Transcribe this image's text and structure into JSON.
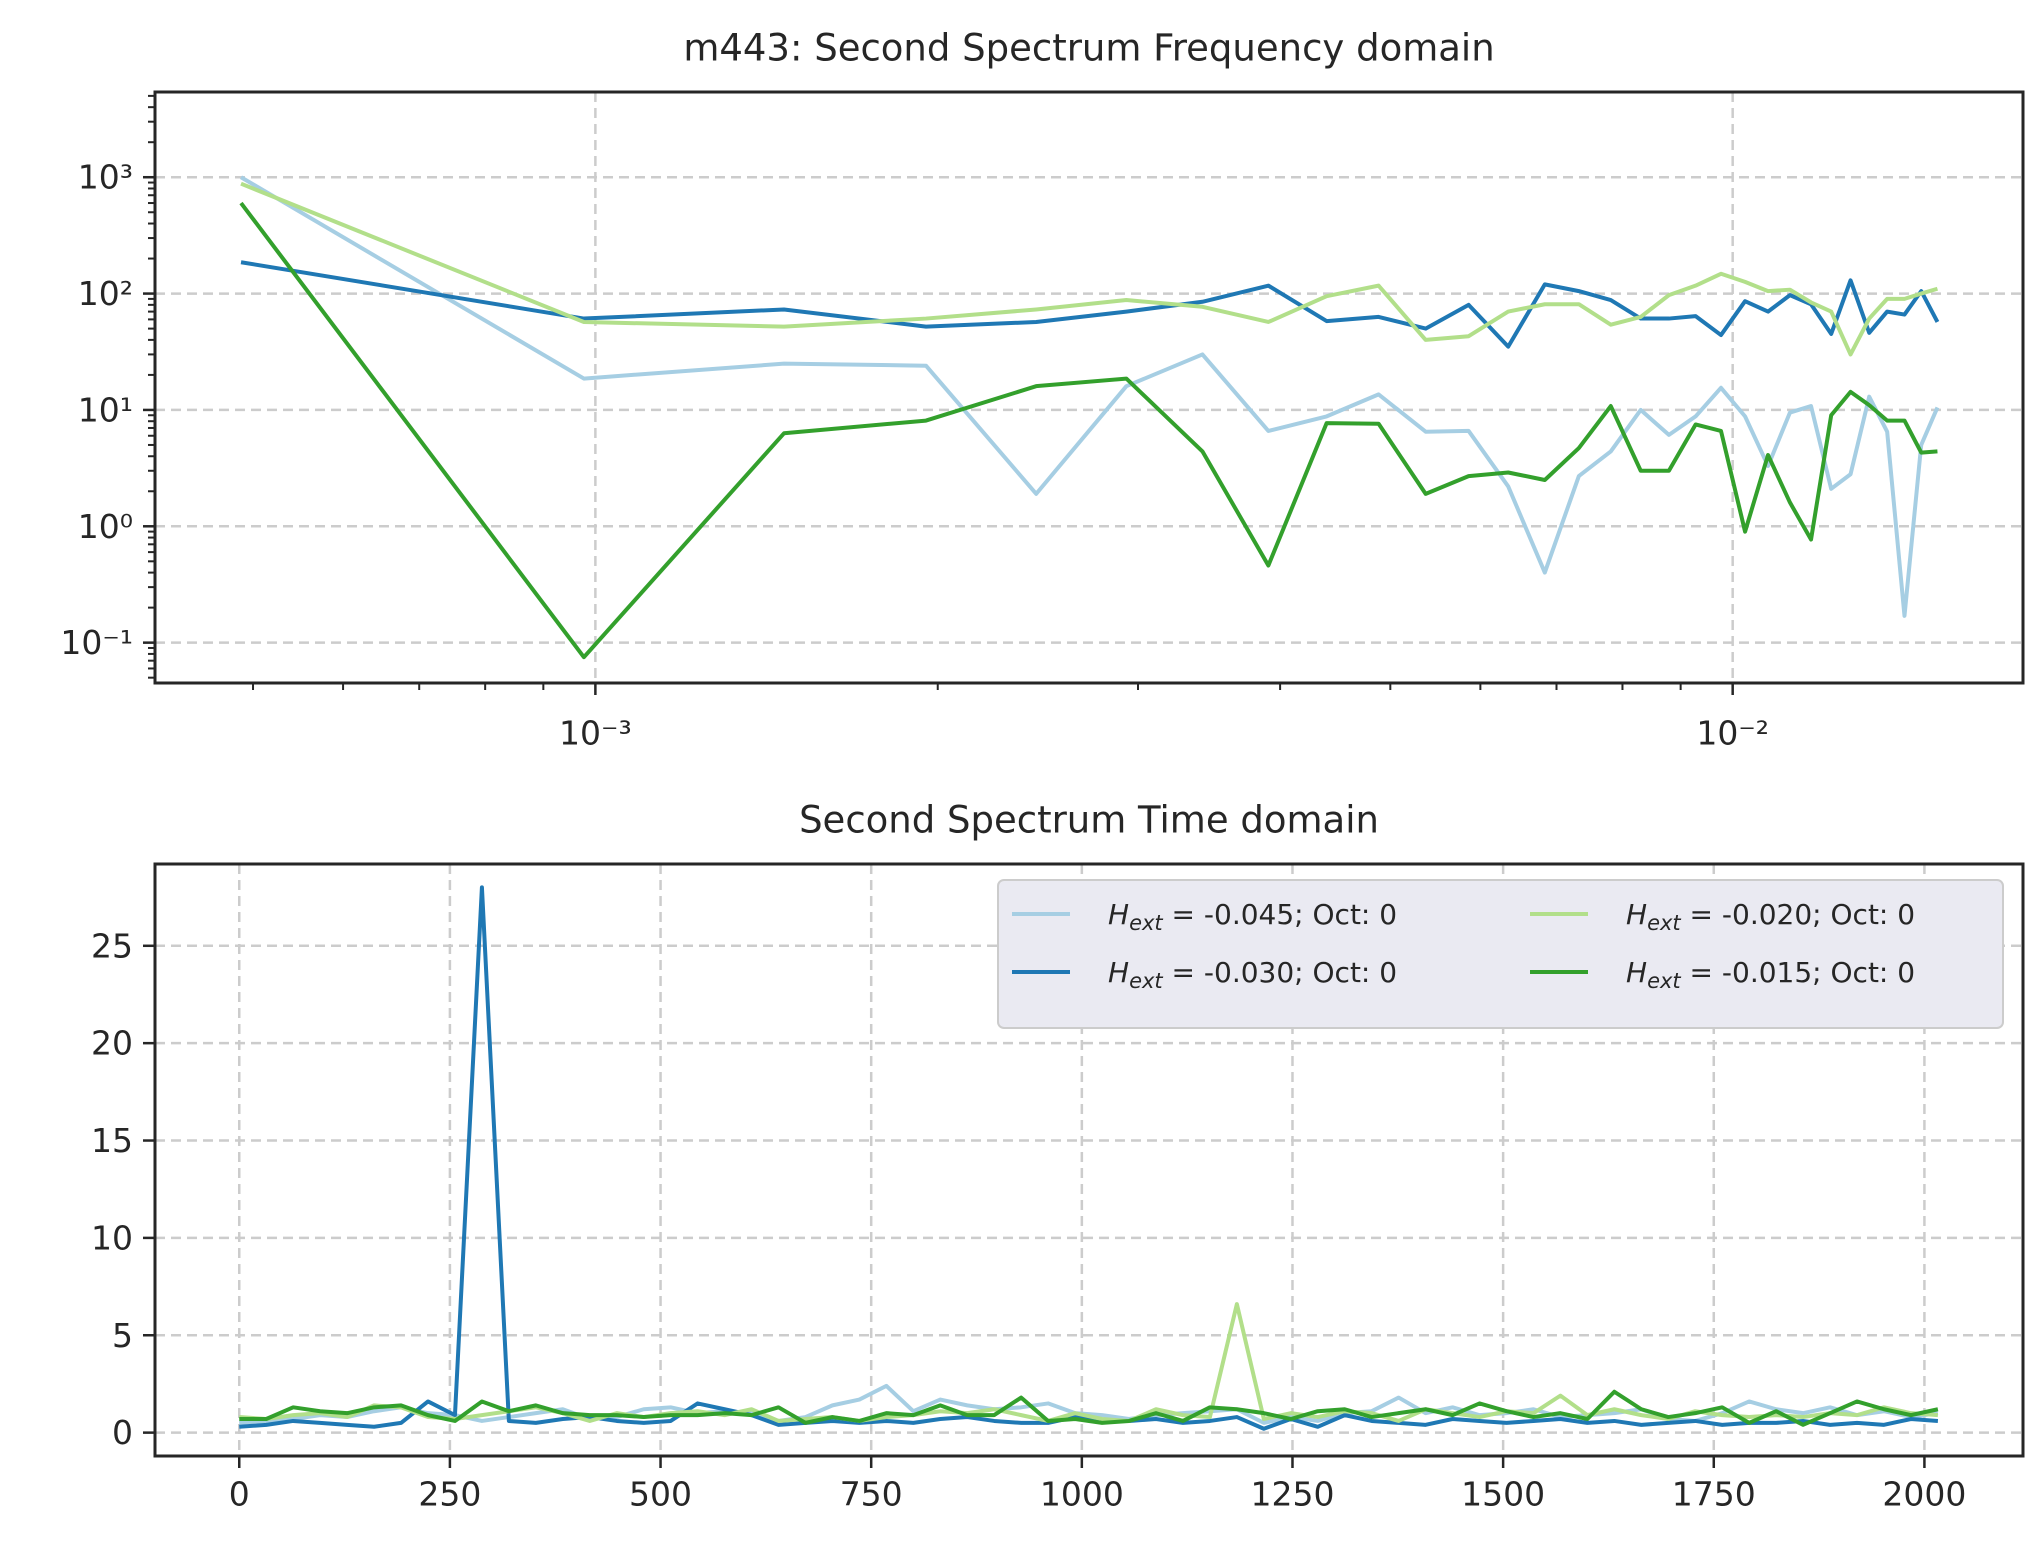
{
  "chart_data": [
    {
      "type": "line",
      "title": "m443: Second Spectrum Frequency domain",
      "x": [
        0.000488,
        0.000977,
        0.001465,
        0.001953,
        0.002441,
        0.00293,
        0.003418,
        0.003906,
        0.004395,
        0.004883,
        0.005371,
        0.005859,
        0.006348,
        0.006836,
        0.007324,
        0.007813,
        0.008301,
        0.008789,
        0.009277,
        0.009766,
        0.010254,
        0.010742,
        0.01123,
        0.011719,
        0.012207,
        0.012695,
        0.013184,
        0.013672,
        0.01416,
        0.014648,
        0.015137
      ],
      "series": [
        {
          "color": "#a6cee3",
          "values": [
            1000,
            18.6,
            25,
            24,
            1.9,
            16,
            30,
            6.6,
            8.8,
            13.6,
            6.5,
            6.6,
            2.2,
            0.4,
            2.7,
            4.4,
            10,
            6.1,
            8.8,
            15.5,
            8.8,
            3.3,
            9.5,
            10.8,
            2.1,
            2.8,
            13,
            6.5,
            0.17,
            5,
            10.5
          ]
        },
        {
          "color": "#1f78b4",
          "values": [
            186,
            61,
            73,
            52,
            57,
            70,
            85,
            117,
            58,
            63,
            50,
            80,
            35,
            120,
            105,
            88,
            61,
            61,
            64,
            44,
            86,
            70,
            97,
            81,
            45,
            130,
            46,
            70,
            66,
            105,
            57
          ]
        },
        {
          "color": "#b2df8a",
          "values": [
            880,
            57,
            52,
            61,
            73,
            88,
            77,
            57,
            95,
            117,
            40,
            43,
            70,
            81,
            81,
            54,
            63,
            97,
            117,
            148,
            126,
            105,
            108,
            84,
            70,
            30,
            61,
            90,
            90,
            100,
            110
          ]
        },
        {
          "color": "#33a02c",
          "values": [
            600,
            0.075,
            6.3,
            8.1,
            16,
            18.6,
            4.4,
            0.46,
            7.7,
            7.6,
            1.9,
            2.7,
            2.9,
            2.5,
            4.7,
            10.8,
            3,
            3,
            7.5,
            6.6,
            0.9,
            4.1,
            1.6,
            0.77,
            9,
            14.3,
            11,
            8.1,
            8.1,
            4.3,
            4.4
          ]
        }
      ],
      "xscale": "log",
      "yscale": "log",
      "xlim": [
        0.00041,
        0.018
      ],
      "ylim": [
        0.045,
        5400
      ],
      "xticks": [
        {
          "value": 0.001,
          "label": "10⁻³"
        },
        {
          "value": 0.01,
          "label": "10⁻²"
        }
      ],
      "yticks": [
        {
          "value": 0.1,
          "label": "10⁻¹"
        },
        {
          "value": 1,
          "label": "10⁰"
        },
        {
          "value": 10,
          "label": "10¹"
        },
        {
          "value": 100,
          "label": "10²"
        },
        {
          "value": 1000,
          "label": "10³"
        }
      ],
      "xminorticks": [
        0.0005,
        0.0006,
        0.0007,
        0.0008,
        0.0009,
        0.002,
        0.003,
        0.004,
        0.005,
        0.006,
        0.007,
        0.008,
        0.009
      ],
      "yminorticks": [
        0.05,
        0.06,
        0.07,
        0.08,
        0.09,
        0.2,
        0.3,
        0.4,
        0.5,
        0.6,
        0.7,
        0.8,
        0.9,
        2,
        3,
        4,
        5,
        6,
        7,
        8,
        9,
        20,
        30,
        40,
        50,
        60,
        70,
        80,
        90,
        200,
        300,
        400,
        500,
        600,
        700,
        800,
        900,
        2000,
        3000,
        4000,
        5000
      ],
      "grid": true
    },
    {
      "type": "line",
      "title": "Second Spectrum Time domain",
      "x": [
        0,
        32,
        64,
        96,
        128,
        160,
        192,
        224,
        256,
        288,
        320,
        352,
        384,
        416,
        448,
        480,
        512,
        544,
        576,
        608,
        640,
        672,
        704,
        736,
        768,
        800,
        832,
        864,
        896,
        928,
        960,
        992,
        1024,
        1056,
        1088,
        1120,
        1152,
        1184,
        1216,
        1248,
        1280,
        1312,
        1344,
        1376,
        1408,
        1440,
        1472,
        1504,
        1536,
        1568,
        1600,
        1632,
        1664,
        1696,
        1728,
        1760,
        1792,
        1824,
        1856,
        1888,
        1920,
        1952,
        1984,
        2016
      ],
      "series": [
        {
          "name": "Hext = -0.045; Oct: 0",
          "color": "#a6cee3",
          "values": [
            0.5,
            0.6,
            0.7,
            0.9,
            0.8,
            1.1,
            1.3,
            1.0,
            0.9,
            0.6,
            0.8,
            1.0,
            1.2,
            0.7,
            0.8,
            1.2,
            1.3,
            1.0,
            1.1,
            1.0,
            0.6,
            0.8,
            1.4,
            1.7,
            2.4,
            1.1,
            1.7,
            1.4,
            1.2,
            1.3,
            1.5,
            1.0,
            0.9,
            0.7,
            0.9,
            1.0,
            1.1,
            1.2,
            0.5,
            0.8,
            0.6,
            1.0,
            1.1,
            1.8,
            1.0,
            1.3,
            0.9,
            1.0,
            1.2,
            0.8,
            0.9,
            1.0,
            1.2,
            0.7,
            0.6,
            1.0,
            1.6,
            1.2,
            1.0,
            1.3,
            0.9,
            1.1,
            0.8,
            1.0
          ]
        },
        {
          "name": "Hext = -0.030; Oct: 0",
          "color": "#1f78b4",
          "values": [
            0.3,
            0.4,
            0.6,
            0.5,
            0.4,
            0.3,
            0.5,
            1.6,
            0.9,
            28.0,
            0.6,
            0.5,
            0.7,
            0.8,
            0.6,
            0.5,
            0.6,
            1.5,
            1.2,
            0.9,
            0.4,
            0.5,
            0.6,
            0.5,
            0.6,
            0.5,
            0.7,
            0.8,
            0.6,
            0.5,
            0.5,
            0.8,
            0.6,
            0.6,
            0.7,
            0.5,
            0.6,
            0.8,
            0.2,
            0.7,
            0.3,
            0.9,
            0.6,
            0.5,
            0.4,
            0.7,
            0.6,
            0.5,
            0.6,
            0.7,
            0.5,
            0.6,
            0.4,
            0.5,
            0.6,
            0.4,
            0.5,
            0.5,
            0.6,
            0.4,
            0.5,
            0.4,
            0.7,
            0.6
          ]
        },
        {
          "name": "Hext = -0.020; Oct: 0",
          "color": "#b2df8a",
          "values": [
            0.8,
            0.7,
            0.9,
            1.0,
            0.8,
            1.4,
            1.3,
            0.8,
            0.7,
            0.9,
            1.1,
            1.3,
            1.0,
            0.6,
            1.0,
            0.8,
            1.0,
            1.1,
            0.9,
            1.2,
            0.6,
            0.7,
            0.8,
            0.6,
            0.8,
            0.9,
            1.1,
            1.0,
            1.2,
            0.9,
            0.6,
            1.0,
            0.7,
            0.6,
            1.2,
            0.9,
            0.8,
            6.6,
            0.7,
            1.0,
            0.8,
            1.1,
            1.0,
            0.6,
            1.2,
            1.0,
            0.8,
            1.1,
            1.0,
            1.9,
            0.9,
            1.2,
            0.9,
            0.7,
            1.1,
            0.9,
            0.8,
            0.9,
            0.8,
            1.0,
            0.9,
            1.3,
            1.0,
            0.9
          ]
        },
        {
          "name": "Hext = -0.015; Oct: 0",
          "color": "#33a02c",
          "values": [
            0.7,
            0.7,
            1.3,
            1.1,
            1.0,
            1.3,
            1.4,
            0.9,
            0.6,
            1.6,
            1.1,
            1.4,
            1.0,
            0.9,
            0.9,
            0.8,
            0.9,
            0.9,
            1.0,
            0.9,
            1.3,
            0.5,
            0.8,
            0.6,
            1.0,
            0.9,
            1.4,
            0.9,
            0.9,
            1.8,
            0.6,
            0.7,
            0.5,
            0.6,
            1.0,
            0.6,
            1.3,
            1.2,
            1.0,
            0.7,
            1.1,
            1.2,
            0.8,
            1.0,
            1.2,
            0.9,
            1.5,
            1.1,
            0.8,
            1.0,
            0.7,
            2.1,
            1.2,
            0.8,
            1.0,
            1.3,
            0.5,
            1.1,
            0.4,
            1.0,
            1.6,
            1.2,
            0.9,
            1.2
          ]
        }
      ],
      "xlim": [
        -100,
        2117
      ],
      "ylim": [
        -1.2,
        29.2
      ],
      "xticks": [
        0,
        250,
        500,
        750,
        1000,
        1250,
        1500,
        1750,
        2000
      ],
      "yticks": [
        0,
        5,
        10,
        15,
        20,
        25
      ],
      "grid": true,
      "legend": "upper right"
    }
  ]
}
